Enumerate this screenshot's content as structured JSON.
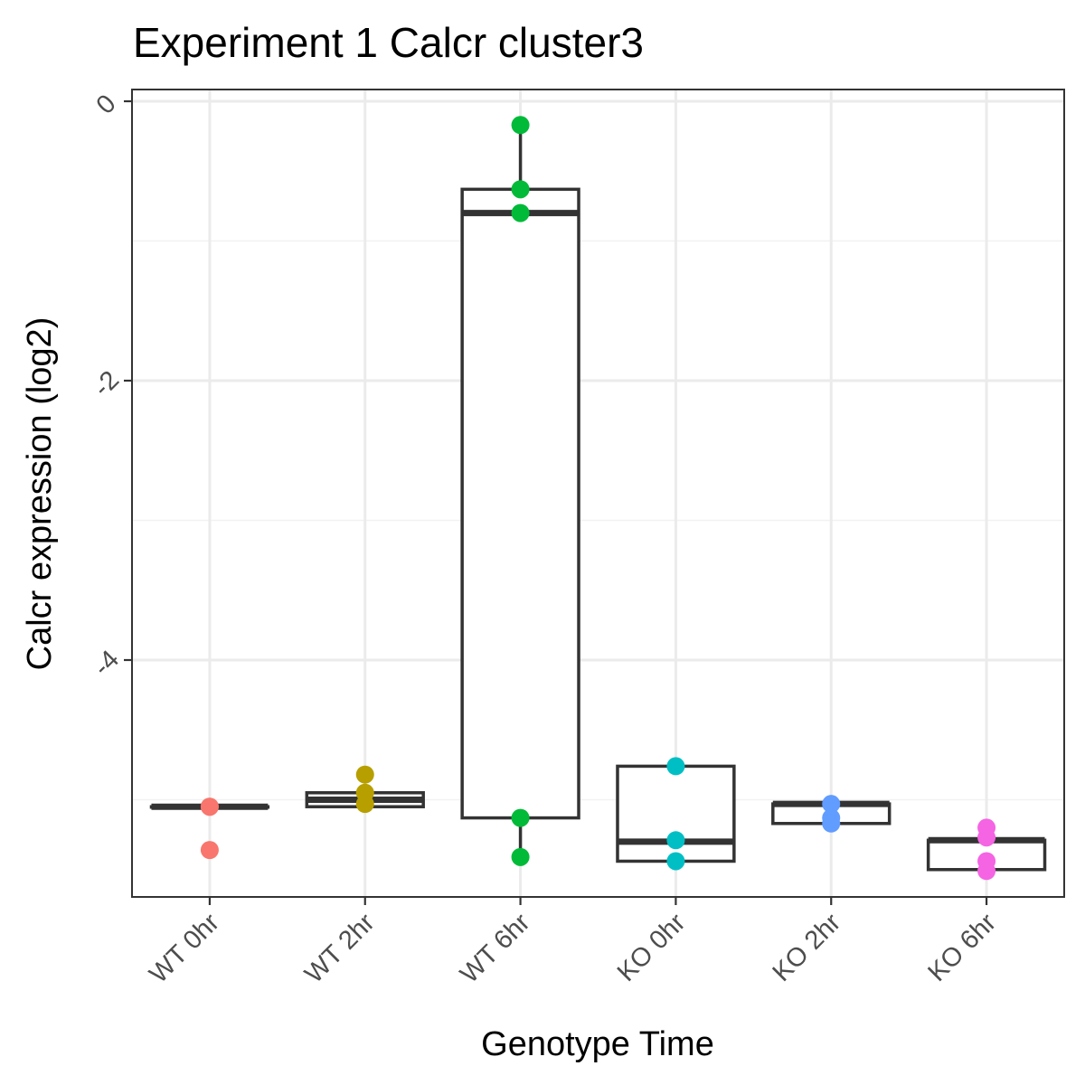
{
  "chart_data": {
    "type": "box",
    "title": "Experiment 1 Calcr cluster3",
    "xlabel": "Genotype Time",
    "ylabel": "Calcr expression (log2)",
    "ylim": [
      -5.7,
      0.07
    ],
    "yticks": [
      0,
      -2,
      -4
    ],
    "ytick_labels": [
      "0",
      "-2",
      "-4"
    ],
    "grid": true,
    "legend": "none",
    "categories": [
      "WT 0hr",
      "WT 2hr",
      "WT 6hr",
      "KO 0hr",
      "KO 2hr",
      "KO 6hr"
    ],
    "colors": [
      "#F8766D",
      "#B79F00",
      "#00BA38",
      "#00BFC4",
      "#619CFF",
      "#F564E3"
    ],
    "groups": [
      {
        "category": "WT 0hr",
        "box": {
          "lower_whisker": -5.05,
          "q1": -5.05,
          "median": -5.05,
          "q3": -5.05,
          "upper_whisker": -5.05
        },
        "points": [
          -5.05,
          -5.05,
          -5.36
        ]
      },
      {
        "category": "WT 2hr",
        "box": {
          "lower_whisker": -5.05,
          "q1": -5.05,
          "median": -5.0,
          "q3": -4.95,
          "upper_whisker": -4.95
        },
        "points": [
          -4.82,
          -4.95,
          -5.03
        ]
      },
      {
        "category": "WT 6hr",
        "box": {
          "lower_whisker": -5.41,
          "q1": -5.13,
          "median": -0.8,
          "q3": -0.63,
          "upper_whisker": -0.17
        },
        "points": [
          -0.17,
          -0.63,
          -0.8,
          -5.13,
          -5.41
        ]
      },
      {
        "category": "KO 0hr",
        "box": {
          "lower_whisker": -5.44,
          "q1": -5.44,
          "median": -5.3,
          "q3": -4.76,
          "upper_whisker": -4.76
        },
        "points": [
          -4.76,
          -5.29,
          -5.44
        ]
      },
      {
        "category": "KO 2hr",
        "box": {
          "lower_whisker": -5.17,
          "q1": -5.17,
          "median": -5.03,
          "q3": -5.03,
          "upper_whisker": -5.03
        },
        "points": [
          -5.03,
          -5.13,
          -5.17
        ]
      },
      {
        "category": "KO 6hr",
        "box": {
          "lower_whisker": -5.5,
          "q1": -5.5,
          "median": -5.29,
          "q3": -5.29,
          "upper_whisker": -5.29
        },
        "points": [
          -5.2,
          -5.27,
          -5.44,
          -5.51
        ]
      }
    ]
  }
}
